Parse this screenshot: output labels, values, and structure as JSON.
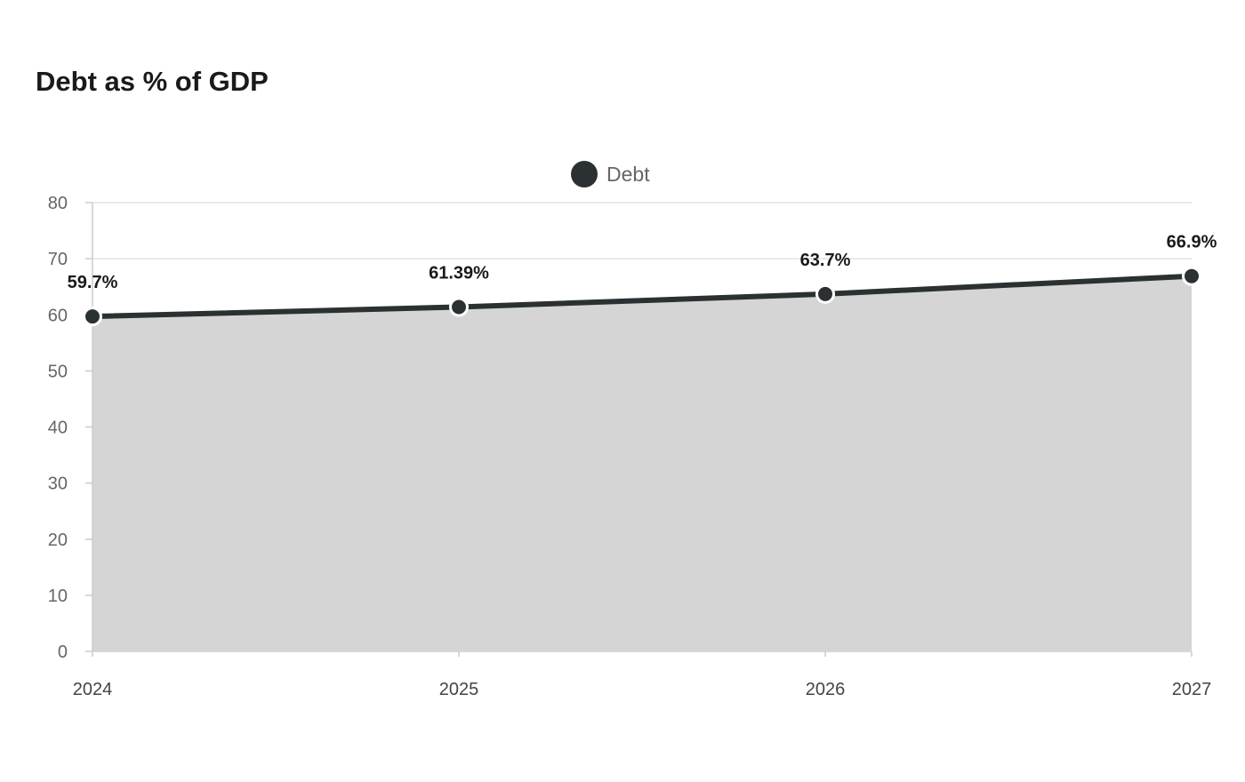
{
  "chart_data": {
    "type": "area",
    "title": "Debt as % of GDP",
    "categories": [
      "2024",
      "2025",
      "2026",
      "2027"
    ],
    "series": [
      {
        "name": "Debt",
        "values": [
          59.7,
          61.39,
          63.7,
          66.9
        ],
        "data_labels": [
          "59.7%",
          "61.39%",
          "63.7%",
          "66.9%"
        ],
        "line_color": "#2b3133",
        "fill_color": "#d5d5d5"
      }
    ],
    "ylim": [
      0,
      80
    ],
    "yticks": [
      0,
      10,
      20,
      30,
      40,
      50,
      60,
      70,
      80
    ],
    "grid": true,
    "legend_position": "top-center"
  }
}
